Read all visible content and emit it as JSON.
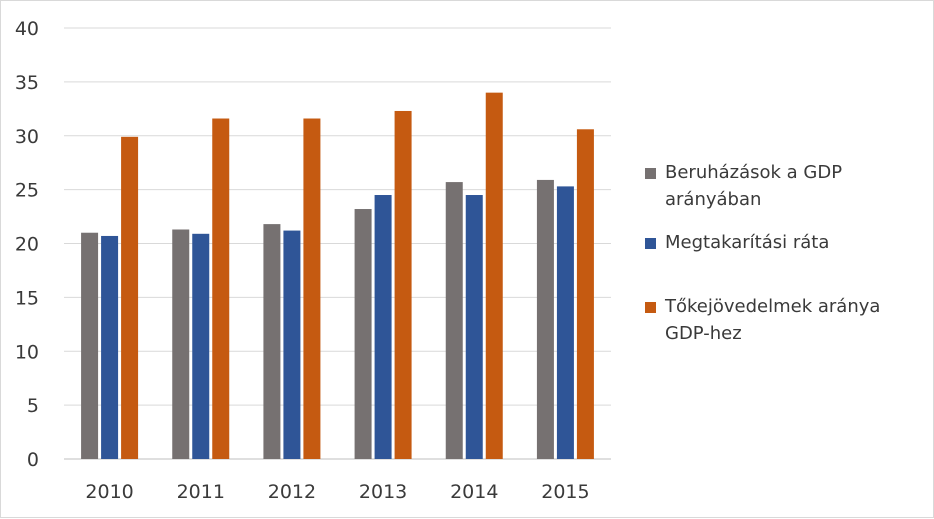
{
  "chart_data": {
    "type": "bar",
    "categories": [
      "2010",
      "2011",
      "2012",
      "2013",
      "2014",
      "2015"
    ],
    "series": [
      {
        "name": "Beruházások a GDP arányában",
        "color": "#767171",
        "values": [
          21.0,
          21.3,
          21.8,
          23.2,
          25.7,
          25.9
        ]
      },
      {
        "name": "Megtakarítási ráta",
        "color": "#2f5597",
        "values": [
          20.7,
          20.9,
          21.2,
          24.5,
          24.5,
          25.3
        ]
      },
      {
        "name": "Tőkejövedelmek aránya GDP-hez",
        "color": "#c55a11",
        "values": [
          29.9,
          31.6,
          31.6,
          32.3,
          34.0,
          30.6
        ]
      }
    ],
    "yticks": [
      "0",
      "5",
      "10",
      "15",
      "20",
      "25",
      "30",
      "35",
      "40"
    ],
    "ylim": [
      0,
      40
    ],
    "grid": true,
    "legend_position": "right"
  }
}
